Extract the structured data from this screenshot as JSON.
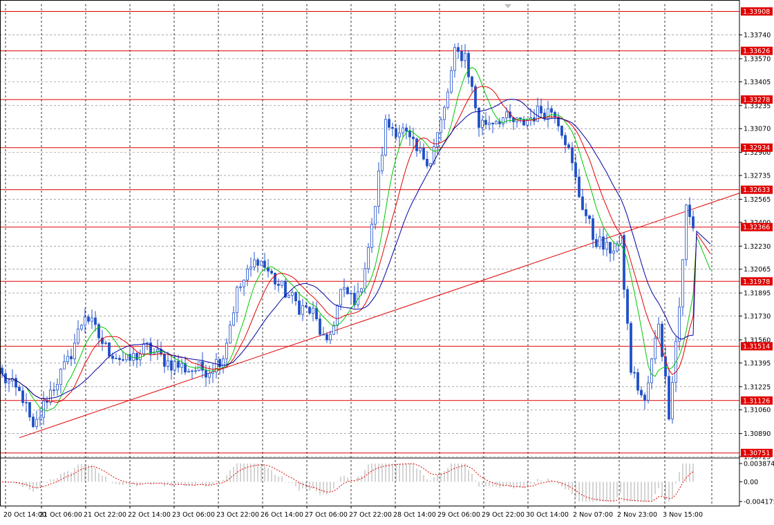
{
  "chart_data": {
    "type": "candlestick",
    "title": "",
    "grid": true,
    "price_axis": {
      "range": [
        1.30725,
        1.3396
      ],
      "tick_labels": [
        "1.33740",
        "1.33570",
        "1.33405",
        "1.33235",
        "1.33070",
        "1.32900",
        "1.32735",
        "1.32565",
        "1.32400",
        "1.32230",
        "1.32065",
        "1.31895",
        "1.31730",
        "1.31560",
        "1.31395",
        "1.31225",
        "1.31060",
        "1.30890",
        "1.30725"
      ]
    },
    "time_axis": {
      "labels": [
        "20 Oct 14:00",
        "21 Oct 06:00",
        "21 Oct 22:00",
        "22 Oct 14:00",
        "23 Oct 06:00",
        "23 Oct 22:00",
        "26 Oct 14:00",
        "27 Oct 06:00",
        "27 Oct 22:00",
        "28 Oct 14:00",
        "29 Oct 06:00",
        "29 Oct 22:00",
        "30 Oct 14:00",
        "2 Nov 07:00",
        "2 Nov 23:00",
        "3 Nov 15:00"
      ]
    },
    "horizontal_levels": [
      {
        "label": "1.33908",
        "value": 1.33908
      },
      {
        "label": "1.33626",
        "value": 1.33626
      },
      {
        "label": "1.33278",
        "value": 1.33278
      },
      {
        "label": "1.32934",
        "value": 1.32934
      },
      {
        "label": "1.32633",
        "value": 1.32633
      },
      {
        "label": "1.32366",
        "value": 1.32366
      },
      {
        "label": "1.31978",
        "value": 1.31978
      },
      {
        "label": "1.31514",
        "value": 1.31514
      },
      {
        "label": "1.31126",
        "value": 1.31126
      },
      {
        "label": "1.30751",
        "value": 1.30751
      }
    ],
    "trendline": {
      "from": {
        "bar": 5,
        "price": 1.3086
      },
      "to": {
        "bar": 179,
        "price": 1.3232
      }
    },
    "price_path": [
      [
        0,
        1.313
      ],
      [
        6,
        1.3115
      ],
      [
        9,
        1.309
      ],
      [
        13,
        1.3115
      ],
      [
        19,
        1.314
      ],
      [
        24,
        1.3175
      ],
      [
        30,
        1.315
      ],
      [
        36,
        1.314
      ],
      [
        42,
        1.315
      ],
      [
        48,
        1.314
      ],
      [
        54,
        1.3135
      ],
      [
        60,
        1.3135
      ],
      [
        64,
        1.3145
      ],
      [
        68,
        1.319
      ],
      [
        74,
        1.3215
      ],
      [
        80,
        1.3195
      ],
      [
        86,
        1.318
      ],
      [
        90,
        1.3175
      ],
      [
        94,
        1.315
      ],
      [
        98,
        1.319
      ],
      [
        103,
        1.3185
      ],
      [
        107,
        1.3235
      ],
      [
        111,
        1.331
      ],
      [
        116,
        1.3305
      ],
      [
        120,
        1.329
      ],
      [
        124,
        1.3285
      ],
      [
        128,
        1.332
      ],
      [
        131,
        1.336
      ],
      [
        134,
        1.336
      ],
      [
        138,
        1.331
      ],
      [
        144,
        1.3315
      ],
      [
        150,
        1.331
      ],
      [
        156,
        1.332
      ],
      [
        160,
        1.332
      ],
      [
        163,
        1.33
      ],
      [
        167,
        1.326
      ],
      [
        171,
        1.323
      ],
      [
        175,
        1.322
      ],
      [
        179,
        1.3225
      ],
      [
        182,
        1.3135
      ],
      [
        186,
        1.311
      ],
      [
        190,
        1.317
      ],
      [
        193,
        1.3105
      ],
      [
        196,
        1.318
      ],
      [
        198,
        1.325
      ],
      [
        200,
        1.3235
      ]
    ],
    "moving_averages": [
      {
        "color": "#00c800",
        "period": 8
      },
      {
        "color": "#e00000",
        "period": 13
      },
      {
        "color": "#0000a0",
        "period": 21
      }
    ],
    "oscillator": {
      "tick_labels": [
        "0.003874",
        "0.00",
        "-0.004175"
      ],
      "range": [
        -0.004175,
        0.003874
      ],
      "histogram_color": "#b8b8b8",
      "signal_color": "#e00000"
    },
    "colors": {
      "candle": "#2050c8",
      "level": "#e00000",
      "grid": "#000000"
    }
  }
}
